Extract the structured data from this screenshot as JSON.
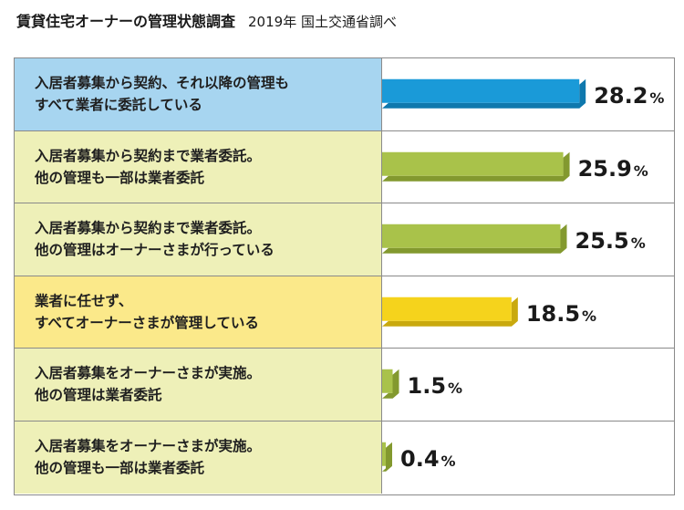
{
  "header": {
    "title": "賃貸住宅オーナーの管理状態調査",
    "subtitle": "2019年 国土交通省調べ"
  },
  "chart_data": {
    "type": "bar",
    "orientation": "horizontal",
    "title": "賃貸住宅オーナーの管理状態調査",
    "subtitle": "2019年 国土交通省調べ",
    "unit": "%",
    "categories": [
      "入居者募集から契約、それ以降の管理も\nすべて業者に委託している",
      "入居者募集から契約まで業者委託。\n他の管理も一部は業者委託",
      "入居者募集から契約まで業者委託。\n他の管理はオーナーさまが行っている",
      "業者に任せず、\nすべてオーナーさまが管理している",
      "入居者募集をオーナーさまが実施。\n他の管理は業者委託",
      "入居者募集をオーナーさまが実施。\n他の管理も一部は業者委託"
    ],
    "values": [
      28.2,
      25.9,
      25.5,
      18.5,
      1.5,
      0.4
    ],
    "value_labels": [
      "28.2",
      "25.9",
      "25.5",
      "18.5",
      "1.5",
      "0.4"
    ],
    "xlim": [
      0,
      30
    ],
    "bar_colors": [
      "#1a9ad8",
      "#a9c24a",
      "#a9c24a",
      "#f5d31c",
      "#a9c24a",
      "#a9c24a"
    ],
    "bar_side_colors": [
      "#0f78ad",
      "#83992f",
      "#83992f",
      "#c9a90e",
      "#83992f",
      "#83992f"
    ],
    "label_backgrounds": [
      "#a7d5f0",
      "#eef0b8",
      "#eef0b8",
      "#fbe98a",
      "#eef0b8",
      "#eef0b8"
    ]
  }
}
